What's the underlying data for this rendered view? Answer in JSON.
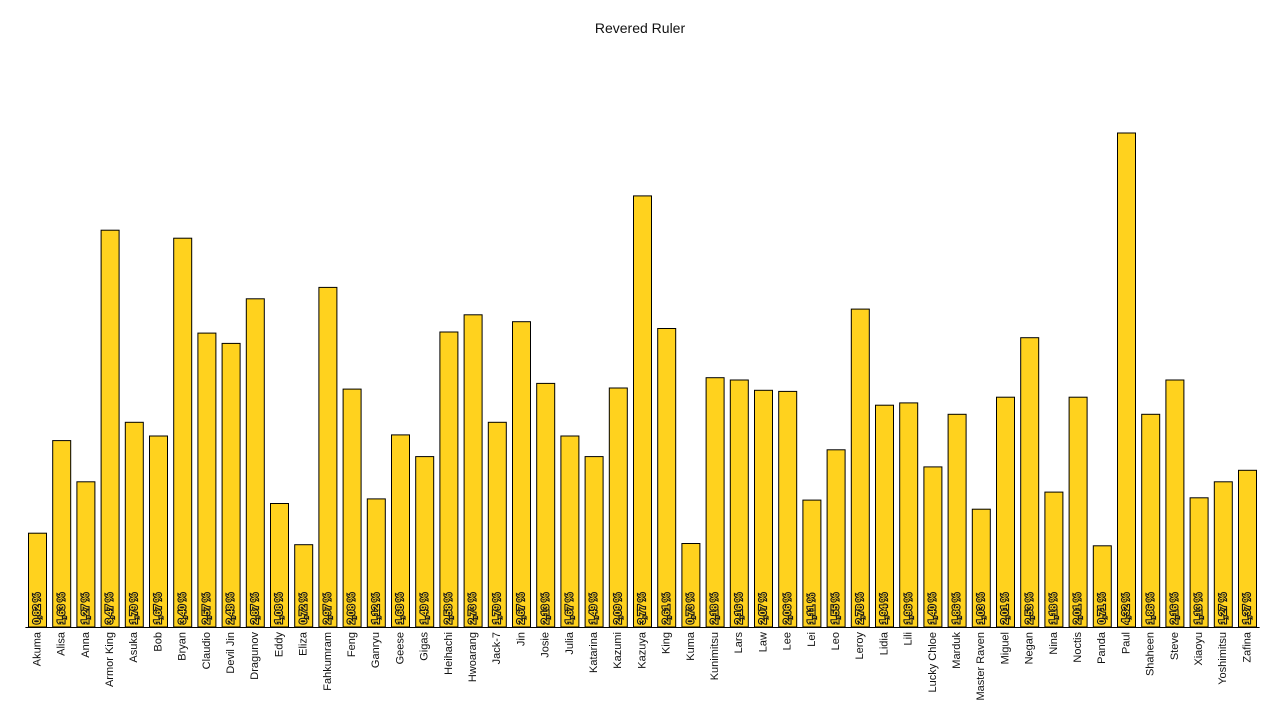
{
  "chart_data": {
    "type": "bar",
    "title": "Revered Ruler",
    "xlabel": "",
    "ylabel": "",
    "bar_color": "#ffd21e",
    "bar_stroke": "#000000",
    "label_suffix": " %",
    "grid": false,
    "ylim": [
      0,
      4.32
    ],
    "categories": [
      "Akuma",
      "Alisa",
      "Anna",
      "Armor King",
      "Asuka",
      "Bob",
      "Bryan",
      "Claudio",
      "Devil Jin",
      "Dragunov",
      "Eddy",
      "Eliza",
      "Fahkumram",
      "Feng",
      "Ganryu",
      "Geese",
      "Gigas",
      "Heihachi",
      "Hwoarang",
      "Jack-7",
      "Jin",
      "Josie",
      "Julia",
      "Katarina",
      "Kazumi",
      "Kazuya",
      "King",
      "Kuma",
      "Kunimitsu",
      "Lars",
      "Law",
      "Lee",
      "Lei",
      "Leo",
      "Leroy",
      "Lidia",
      "Lili",
      "Lucky Chloe",
      "Marduk",
      "Master Raven",
      "Miguel",
      "Negan",
      "Nina",
      "Noctis",
      "Panda",
      "Paul",
      "Shaheen",
      "Steve",
      "Xiaoyu",
      "Yoshimitsu",
      "Zafina"
    ],
    "values": [
      0.82,
      1.63,
      1.27,
      3.47,
      1.79,
      1.67,
      3.4,
      2.57,
      2.48,
      2.87,
      1.08,
      0.72,
      2.97,
      2.08,
      1.12,
      1.68,
      1.49,
      2.58,
      2.73,
      1.79,
      2.67,
      2.13,
      1.67,
      1.49,
      2.09,
      3.77,
      2.61,
      0.73,
      2.18,
      2.16,
      2.07,
      2.06,
      1.11,
      1.55,
      2.78,
      1.94,
      1.96,
      1.4,
      1.86,
      1.03,
      2.01,
      2.53,
      1.18,
      2.01,
      0.71,
      4.32,
      1.86,
      2.16,
      1.13,
      1.27,
      1.37
    ],
    "value_labels": [
      "0,82 %",
      "1,63 %",
      "1,27 %",
      "3,47 %",
      "1,79 %",
      "1,67 %",
      "3,40 %",
      "2,57 %",
      "2,48 %",
      "2,87 %",
      "1,08 %",
      "0,72 %",
      "2,97 %",
      "2,08 %",
      "1,12 %",
      "1,68 %",
      "1,49 %",
      "2,58 %",
      "2,73 %",
      "1,79 %",
      "2,67 %",
      "2,13 %",
      "1,67 %",
      "1,49 %",
      "2,09 %",
      "3,77 %",
      "2,61 %",
      "0,73 %",
      "2,18 %",
      "2,16 %",
      "2,07 %",
      "2,06 %",
      "1,11 %",
      "1,55 %",
      "2,78 %",
      "1,94 %",
      "1,96 %",
      "1,40 %",
      "1,86 %",
      "1,03 %",
      "2,01 %",
      "2,53 %",
      "1,18 %",
      "2,01 %",
      "0,71 %",
      "4,32 %",
      "1,86 %",
      "2,16 %",
      "1,13 %",
      "1,27 %",
      "1,37 %"
    ]
  }
}
